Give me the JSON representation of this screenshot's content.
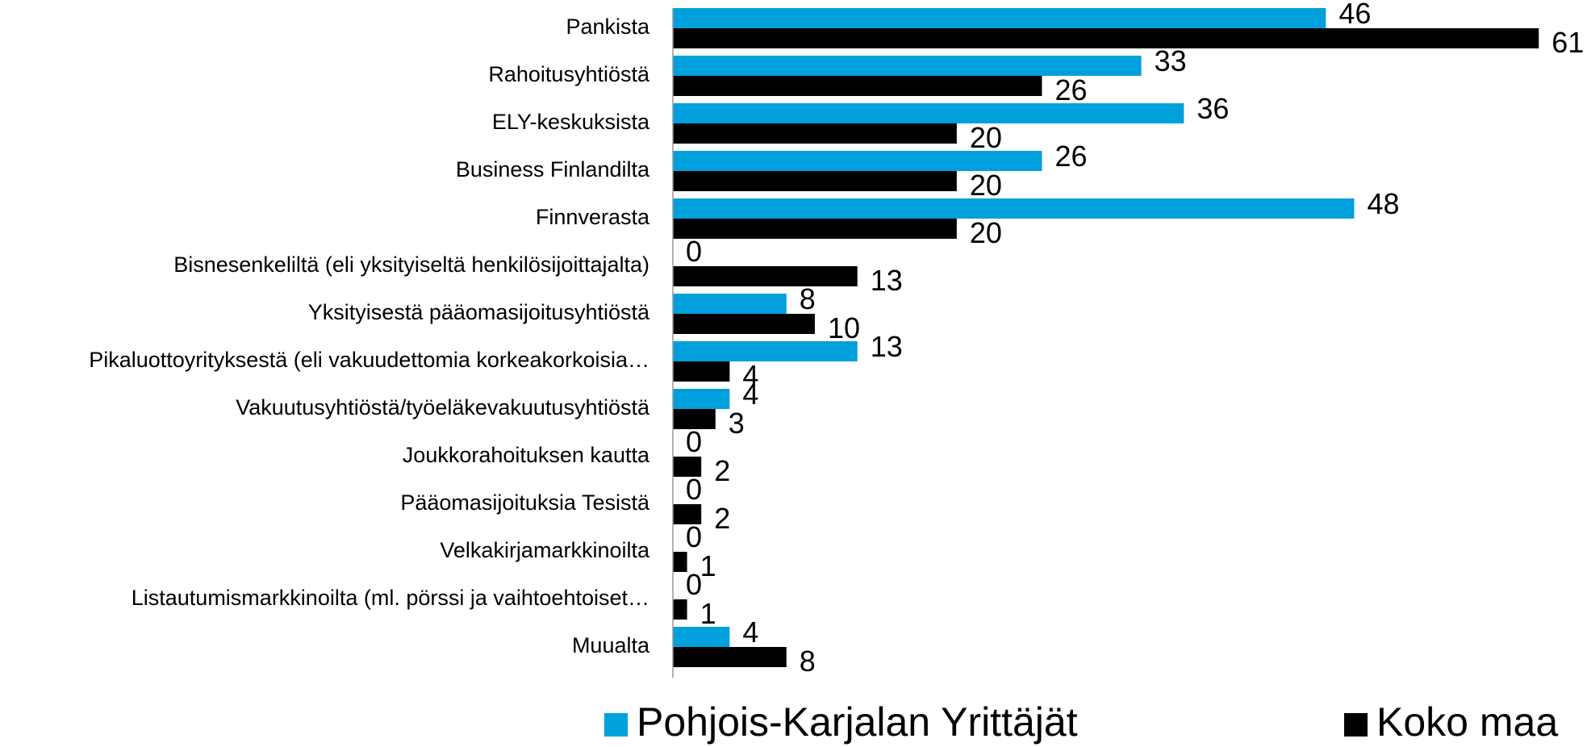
{
  "chart_data": {
    "type": "bar",
    "orientation": "horizontal",
    "categories": [
      "Pankista",
      "Rahoitusyhtiöstä",
      "ELY-keskuksista",
      "Business Finlandilta",
      "Finnverasta",
      "Bisnesenkeliltä (eli yksityiseltä henkilösijoittajalta)",
      "Yksityisestä pääomasijoitusyhtiöstä",
      "Pikaluottoyrityksestä (eli vakuudettomia korkeakorkoisia…",
      "Vakuutusyhtiöstä/työeläkevakuutusyhtiöstä",
      "Joukkorahoituksen kautta",
      "Pääomasijoituksia Tesistä",
      "Velkakirjamarkkinoilta",
      "Listautumismarkkinoilta (ml. pörssi ja vaihtoehtoiset…",
      "Muualta"
    ],
    "series": [
      {
        "name": "Pohjois-Karjalan Yrittäjät",
        "color": "#00a0dc",
        "values": [
          46,
          33,
          36,
          26,
          48,
          0,
          8,
          13,
          4,
          0,
          0,
          0,
          0,
          4
        ]
      },
      {
        "name": "Koko maa",
        "color": "#000000",
        "values": [
          61,
          26,
          20,
          20,
          20,
          13,
          10,
          4,
          3,
          2,
          2,
          1,
          1,
          8
        ]
      }
    ],
    "xlim": [
      0,
      64
    ],
    "legend": "bottom"
  }
}
